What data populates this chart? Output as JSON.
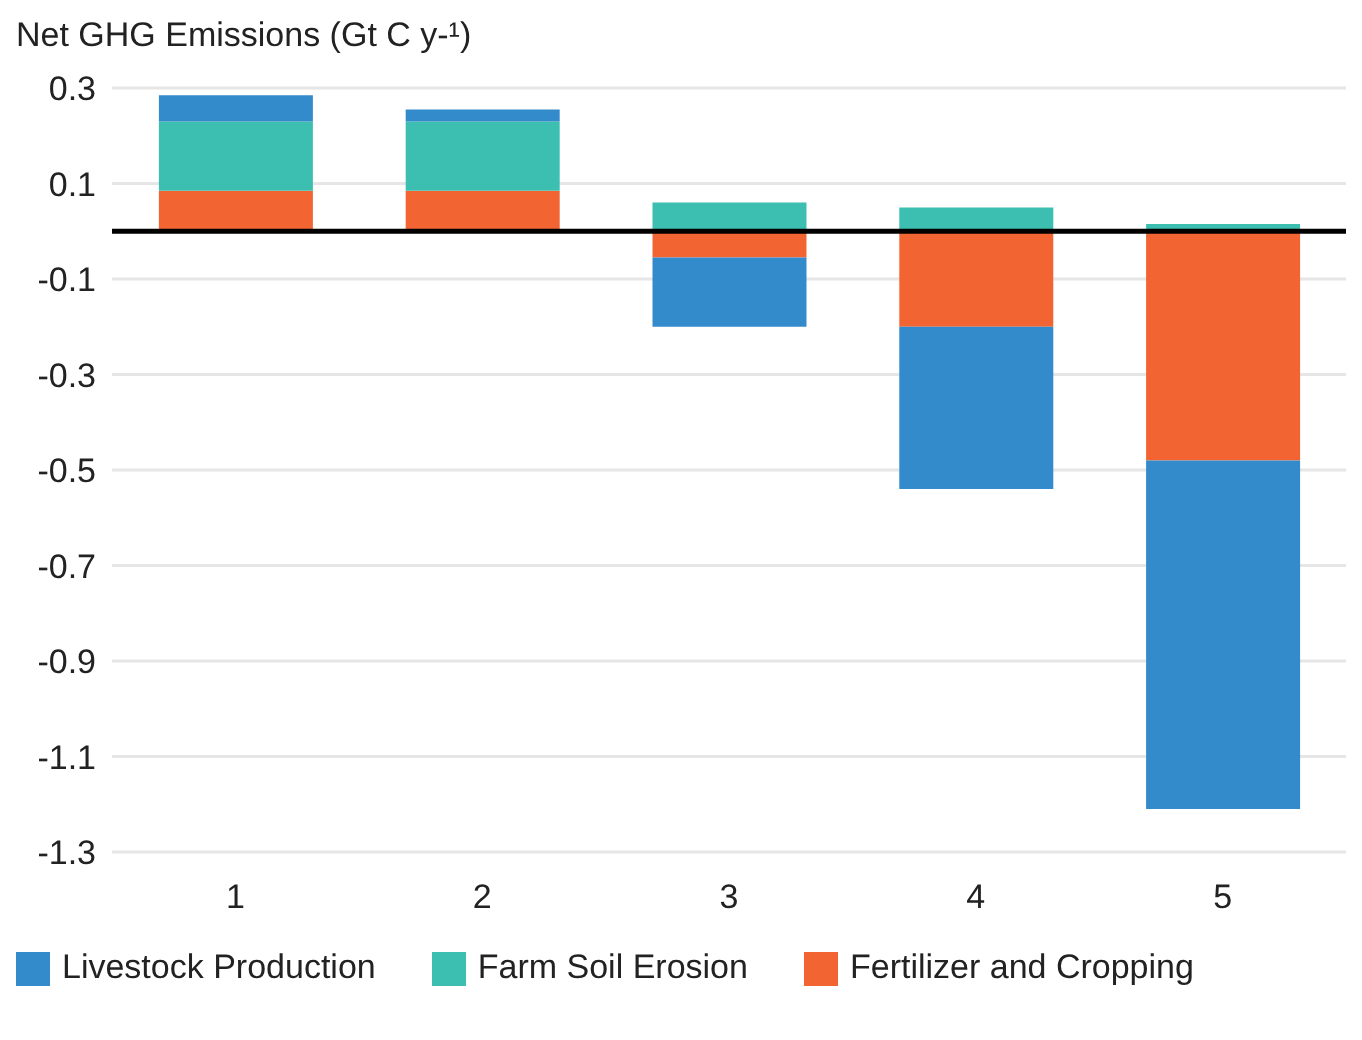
{
  "chart_data": {
    "type": "bar",
    "title": "Net GHG Emissions (Gt C y-¹)",
    "categories": [
      "1",
      "2",
      "3",
      "4",
      "5"
    ],
    "stacked": true,
    "series": [
      {
        "name": "Fertilizer and Cropping",
        "color": "#f26532",
        "values": [
          0.085,
          0.085,
          -0.055,
          -0.2,
          -0.48
        ]
      },
      {
        "name": "Farm Soil Erosion",
        "color": "#3cbfb1",
        "values": [
          0.145,
          0.145,
          0.06,
          0.05,
          0.015
        ]
      },
      {
        "name": "Livestock Production",
        "color": "#348bcb",
        "values": [
          0.055,
          0.025,
          -0.145,
          -0.34,
          -0.73
        ]
      }
    ],
    "ylim": [
      -1.3,
      0.3
    ],
    "yticks": [
      0.3,
      0.1,
      -0.1,
      -0.3,
      -0.5,
      -0.7,
      -0.9,
      -1.1,
      -1.3
    ],
    "ref_lines": [
      {
        "axis": "y",
        "value": 0,
        "color": "#000000"
      }
    ],
    "grid": "y",
    "legend": "bottom"
  }
}
